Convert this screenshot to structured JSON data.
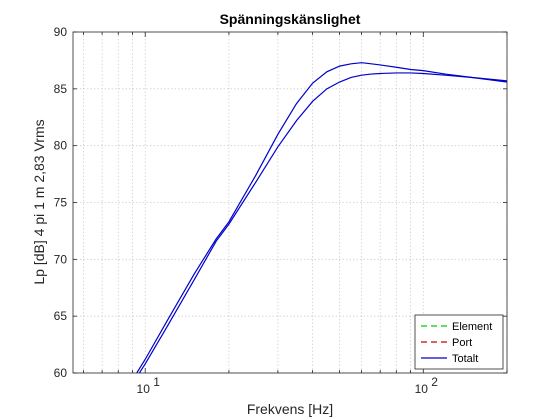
{
  "chart_data": {
    "type": "line",
    "title": "Spänningskänslighet",
    "xlabel": "Frekvens [Hz]",
    "ylabel": "Lp [dB] 4 pi 1 m 2,83 Vrms",
    "xscale": "log",
    "xlim": [
      5.5,
      200
    ],
    "ylim": [
      60,
      90
    ],
    "yticks": [
      60,
      65,
      70,
      75,
      80,
      85,
      90
    ],
    "xticks": [
      {
        "base": "10",
        "exp": "1",
        "value": 10
      },
      {
        "base": "10",
        "exp": "2",
        "value": 100
      }
    ],
    "grid": true,
    "legend_position": "bottom-right",
    "series": [
      {
        "name": "Element",
        "color": "#00cc00",
        "style": "dashed",
        "x": [],
        "y": []
      },
      {
        "name": "Port",
        "color": "#cc0000",
        "style": "dashed",
        "x": [],
        "y": []
      },
      {
        "name": "Totalt",
        "color": "#0000cc",
        "style": "solid",
        "x": [
          9.0,
          10,
          12,
          15,
          18,
          20,
          25,
          30,
          35,
          40,
          45,
          50,
          55,
          60,
          65,
          70,
          80,
          90,
          100,
          120,
          150,
          200
        ],
        "y": [
          59.4,
          61.2,
          64.6,
          68.7,
          71.8,
          73.3,
          77.4,
          81.0,
          83.7,
          85.5,
          86.5,
          87.0,
          87.2,
          87.3,
          87.2,
          87.1,
          86.9,
          86.7,
          86.6,
          86.3,
          86.0,
          85.7
        ]
      },
      {
        "name": "",
        "color": "#0000cc",
        "style": "solid",
        "x": [
          9.3,
          10,
          12,
          15,
          18,
          20,
          25,
          30,
          35,
          40,
          45,
          50,
          55,
          60,
          65,
          70,
          80,
          90,
          100,
          120,
          150,
          200
        ],
        "y": [
          59.6,
          60.8,
          64.1,
          68.2,
          71.6,
          73.1,
          76.8,
          79.9,
          82.2,
          83.9,
          85.0,
          85.6,
          86.0,
          86.2,
          86.3,
          86.35,
          86.4,
          86.4,
          86.35,
          86.2,
          86.0,
          85.6
        ]
      }
    ]
  }
}
